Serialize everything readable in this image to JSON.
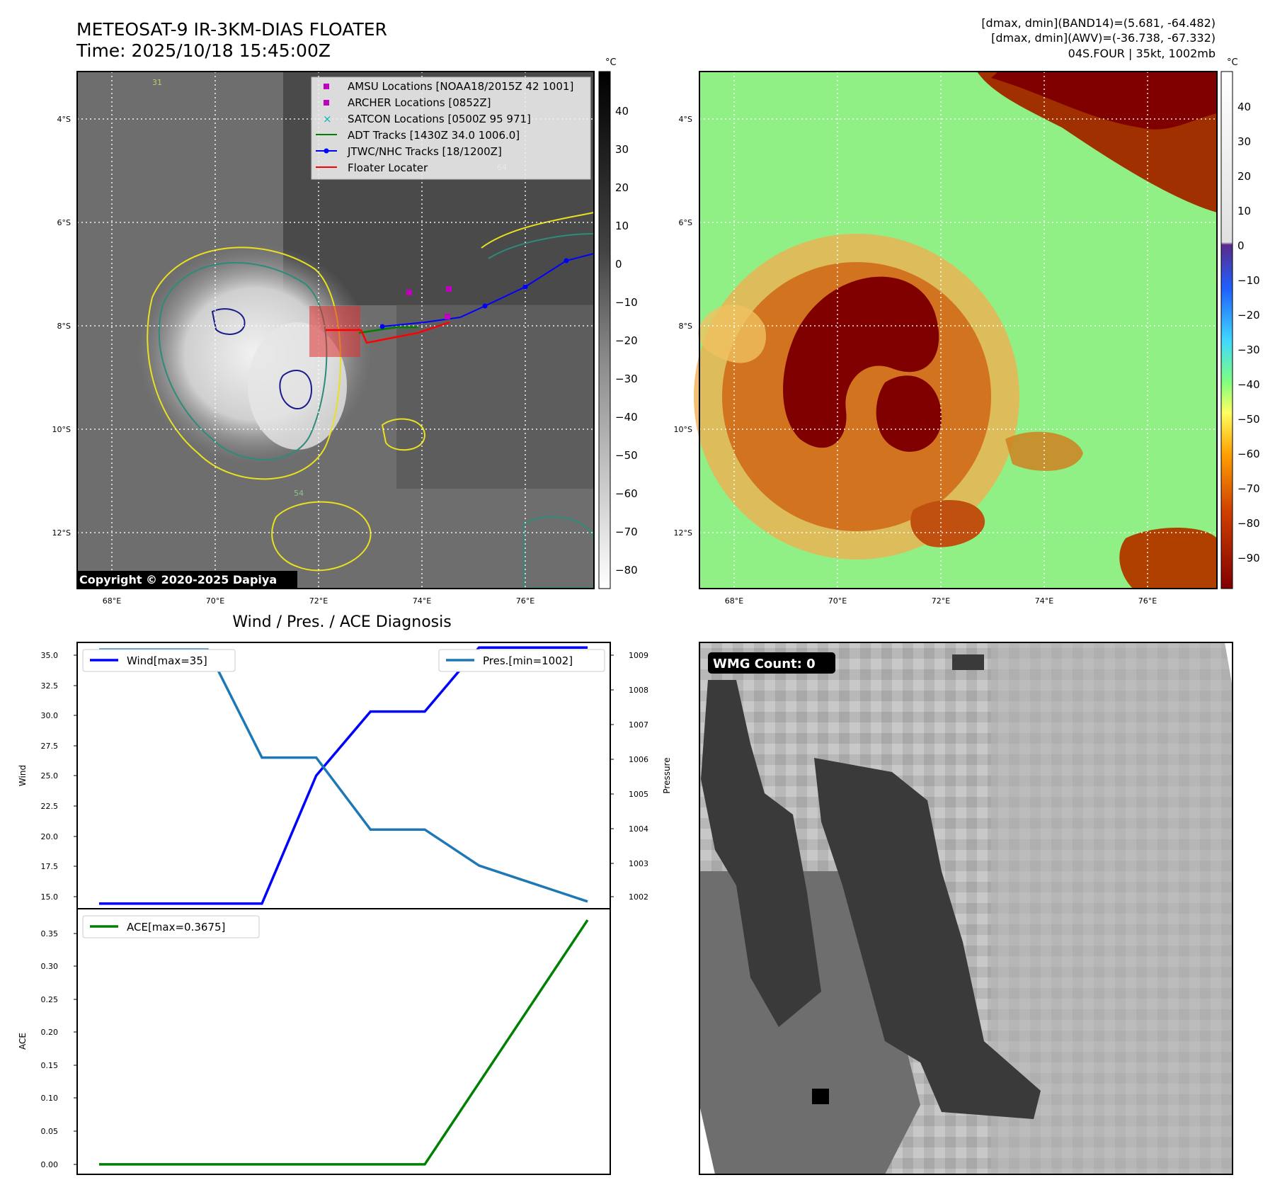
{
  "header": {
    "title_line1": "METEOSAT-9 IR-3KM-DIAS FLOATER",
    "title_line2": "Time: 2025/10/18 15:45:00Z",
    "info_line1": "[dmax, dmin](BAND14)=(5.681, -64.482)",
    "info_line2": "[dmax, dmin](AWV)=(-36.738, -67.332)",
    "info_line3": "04S.FOUR | 35kt, 1002mb"
  },
  "map": {
    "lat_labels": [
      "4°S",
      "6°S",
      "8°S",
      "10°S",
      "12°S"
    ],
    "lon_labels": [
      "68°E",
      "70°E",
      "72°E",
      "74°E",
      "76°E"
    ],
    "copyright": "Copyright © 2020-2025 Dapiya",
    "legend": [
      {
        "label": "AMSU Locations [NOAA18/2015Z 42 1001]",
        "color": "#c000c0",
        "marker": "square"
      },
      {
        "label": "ARCHER Locations [0852Z]",
        "color": "#c000c0",
        "marker": "square"
      },
      {
        "label": "SATCON Locations [0500Z 95 971]",
        "color": "#00b8b8",
        "marker": "x"
      },
      {
        "label": "ADT Tracks [1430Z 34.0 1006.0]",
        "color": "#008000",
        "marker": "line"
      },
      {
        "label": "JTWC/NHC Tracks [18/1200Z]",
        "color": "#0000ff",
        "marker": "line-dot"
      },
      {
        "label": "Floater Locater",
        "color": "#ff0000",
        "marker": "line"
      }
    ],
    "contour_labels": [
      "31",
      "54",
      "64"
    ],
    "left_colorbar": {
      "unit": "°C",
      "ticks": [
        "40",
        "30",
        "20",
        "10",
        "0",
        "−10",
        "−20",
        "−30",
        "−40",
        "−50",
        "−60",
        "−70",
        "−80"
      ]
    },
    "right_colorbar": {
      "unit": "°C",
      "ticks": [
        "40",
        "30",
        "20",
        "10",
        "0",
        "−10",
        "−20",
        "−30",
        "−40",
        "−50",
        "−60",
        "−70",
        "−80",
        "−90"
      ]
    }
  },
  "diagnosis": {
    "title": "Wind / Pres. / ACE Diagnosis",
    "wind_ylabel": "Wind",
    "pres_ylabel": "Pressure",
    "ace_ylabel": "ACE",
    "wind_legend": "Wind[max=35]",
    "pres_legend": "Pres.[min=1002]",
    "ace_legend": "ACE[max=0.3675]",
    "wind_ticks": [
      "35.0",
      "32.5",
      "30.0",
      "27.5",
      "25.0",
      "22.5",
      "20.0",
      "17.5",
      "15.0"
    ],
    "pres_ticks": [
      "1009",
      "1008",
      "1007",
      "1006",
      "1005",
      "1004",
      "1003",
      "1002"
    ],
    "ace_ticks": [
      "0.35",
      "0.30",
      "0.25",
      "0.20",
      "0.15",
      "0.10",
      "0.05",
      "0.00"
    ]
  },
  "wmg": {
    "label": "WMG Count: 0"
  },
  "chart_data": [
    {
      "type": "line",
      "title": "Wind / Pres. / ACE Diagnosis",
      "x": [
        0,
        1,
        2,
        3,
        4,
        5,
        6,
        7,
        8,
        9
      ],
      "series": [
        {
          "name": "Wind[max=35]",
          "axis": "left",
          "color": "#0000ff",
          "values": [
            15,
            15,
            15,
            15,
            25,
            30,
            30,
            35,
            35,
            35
          ]
        },
        {
          "name": "Pres.[min=1002]",
          "axis": "right",
          "color": "#1f77b4",
          "values": [
            1009,
            1009,
            1009,
            1006,
            1006,
            1004,
            1004,
            1003,
            1002.5,
            1002
          ]
        }
      ],
      "ylabel": "Wind",
      "y2label": "Pressure",
      "ylim": [
        14.6,
        35.4
      ],
      "y2lim": [
        1001.8,
        1009.2
      ]
    },
    {
      "type": "line",
      "x": [
        0,
        1,
        2,
        3,
        4,
        5,
        6,
        7,
        8,
        9
      ],
      "series": [
        {
          "name": "ACE[max=0.3675]",
          "color": "#008000",
          "values": [
            0,
            0,
            0,
            0,
            0,
            0,
            0,
            0.1225,
            0.245,
            0.3675
          ]
        }
      ],
      "ylabel": "ACE",
      "ylim": [
        -0.015,
        0.3845
      ]
    }
  ]
}
